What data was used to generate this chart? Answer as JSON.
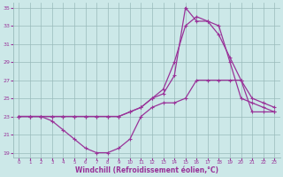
{
  "xlabel": "Windchill (Refroidissement éolien,°C)",
  "bg_color": "#cce8e8",
  "line_color": "#993399",
  "grid_color": "#99bbbb",
  "xlim": [
    -0.5,
    23.5
  ],
  "ylim": [
    18.5,
    35.5
  ],
  "yticks": [
    19,
    21,
    23,
    25,
    27,
    29,
    31,
    33,
    35
  ],
  "xticks": [
    0,
    1,
    2,
    3,
    4,
    5,
    6,
    7,
    8,
    9,
    10,
    11,
    12,
    13,
    14,
    15,
    16,
    17,
    18,
    19,
    20,
    21,
    22,
    23
  ],
  "line1_x": [
    0,
    1,
    2,
    3,
    4,
    5,
    6,
    7,
    8,
    9,
    10,
    11,
    12,
    13,
    14,
    15,
    16,
    17,
    18,
    19,
    20,
    21,
    22,
    23
  ],
  "line1_y": [
    23,
    23,
    23,
    22.5,
    21.5,
    20.5,
    19.5,
    19,
    19,
    19.5,
    20.5,
    23,
    24,
    24.5,
    24.5,
    25,
    27,
    27,
    27,
    27,
    27,
    23.5,
    23.5,
    23.5
  ],
  "line2_x": [
    0,
    1,
    2,
    3,
    4,
    5,
    6,
    7,
    8,
    9,
    10,
    11,
    12,
    13,
    14,
    15,
    16,
    17,
    18,
    19,
    20,
    21,
    22,
    23
  ],
  "line2_y": [
    23,
    23,
    23,
    23,
    23,
    23,
    23,
    23,
    23,
    23,
    23.5,
    24,
    25,
    26,
    29,
    33,
    34,
    33.5,
    32,
    29.5,
    27,
    25,
    24.5,
    24
  ],
  "line3_x": [
    0,
    1,
    2,
    3,
    4,
    5,
    6,
    7,
    8,
    9,
    10,
    11,
    12,
    13,
    14,
    15,
    16,
    17,
    18,
    19,
    20,
    21,
    22,
    23
  ],
  "line3_y": [
    23,
    23,
    23,
    23,
    23,
    23,
    23,
    23,
    23,
    23,
    23.5,
    24,
    25,
    25.5,
    27.5,
    35,
    33.5,
    33.5,
    33,
    29,
    25,
    24.5,
    24,
    23.5
  ]
}
